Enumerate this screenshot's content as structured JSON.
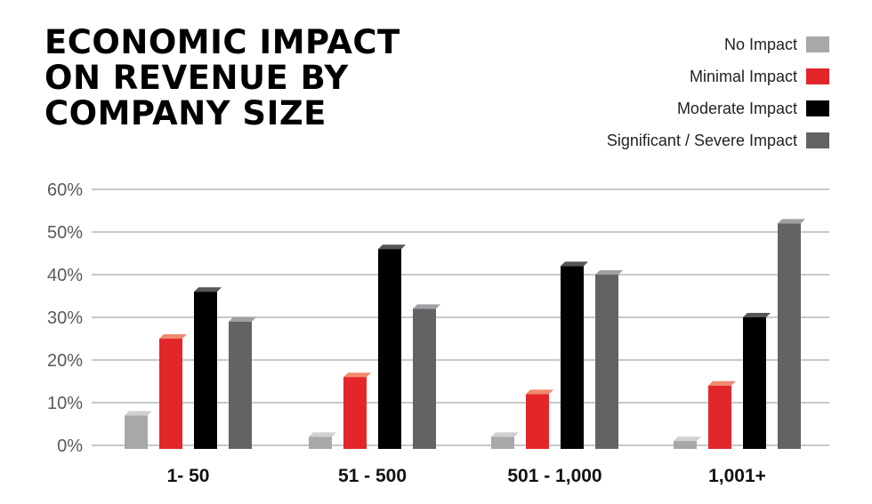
{
  "chart_data": {
    "type": "bar",
    "title": "ECONOMIC IMPACT ON REVENUE BY COMPANY SIZE",
    "title_lines": [
      "ECONOMIC IMPACT",
      "ON REVENUE BY",
      "COMPANY SIZE"
    ],
    "categories": [
      "1- 50",
      "51 - 500",
      "501 - 1,000",
      "1,001+"
    ],
    "series": [
      {
        "name": "No Impact",
        "color": "#a7a8aa",
        "values": [
          7,
          2,
          2,
          1
        ]
      },
      {
        "name": "Minimal Impact",
        "color": "#e3262a",
        "values": [
          25,
          16,
          12,
          14
        ]
      },
      {
        "name": "Moderate Impact",
        "color": "#000000",
        "values": [
          36,
          46,
          42,
          30
        ]
      },
      {
        "name": "Significant / Severe Impact",
        "color": "#636366",
        "values": [
          29,
          32,
          40,
          52
        ]
      }
    ],
    "yticks": [
      "0%",
      "10%",
      "20%",
      "30%",
      "40%",
      "50%",
      "60%"
    ],
    "ylim": [
      0,
      60
    ],
    "xlabel": "",
    "ylabel": "",
    "grid": true,
    "legend": "top-right"
  }
}
